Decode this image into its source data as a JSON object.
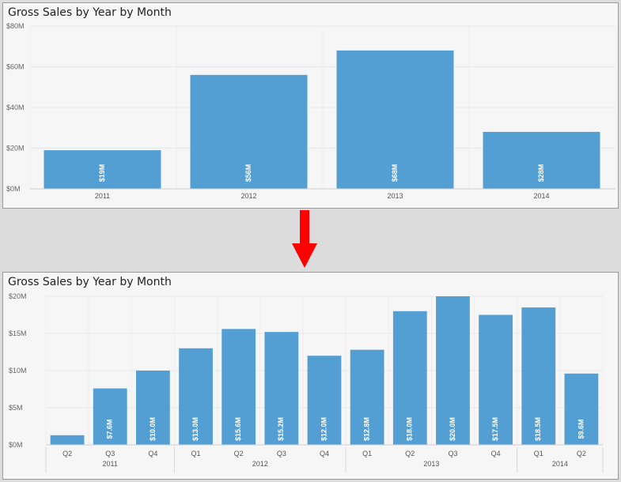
{
  "chart_data": [
    {
      "type": "bar",
      "title": "Gross Sales by Year by Month",
      "categories": [
        "2011",
        "2012",
        "2013",
        "2014"
      ],
      "values": [
        19,
        56,
        68,
        28
      ],
      "data_labels": [
        "$19M",
        "$56M",
        "$68M",
        "$28M"
      ],
      "y_ticks": [
        "$0M",
        "$20M",
        "$40M",
        "$60M",
        "$80M"
      ],
      "ylim": [
        0,
        80
      ],
      "xlabel": "",
      "ylabel": "",
      "grid": true,
      "color": "#539fd3"
    },
    {
      "type": "bar",
      "title": "Gross Sales by Year by Month",
      "categories": [
        "Q2",
        "Q3",
        "Q4",
        "Q1",
        "Q2",
        "Q3",
        "Q4",
        "Q1",
        "Q2",
        "Q3",
        "Q4",
        "Q1",
        "Q2"
      ],
      "years": [
        {
          "label": "2011",
          "count": 3
        },
        {
          "label": "2012",
          "count": 4
        },
        {
          "label": "2013",
          "count": 4
        },
        {
          "label": "2014",
          "count": 2
        }
      ],
      "values": [
        1.3,
        7.6,
        10.0,
        13.0,
        15.6,
        15.2,
        12.0,
        12.8,
        18.0,
        20.0,
        17.5,
        18.5,
        9.6
      ],
      "data_labels": [
        "",
        "$7.6M",
        "$10.0M",
        "$13.0M",
        "$15.6M",
        "$15.2M",
        "$12.0M",
        "$12.8M",
        "$18.0M",
        "$20.0M",
        "$17.5M",
        "$18.5M",
        "$9.6M"
      ],
      "y_ticks": [
        "$0M",
        "$5M",
        "$10M",
        "$15M",
        "$20M"
      ],
      "ylim": [
        0,
        20
      ],
      "xlabel": "",
      "ylabel": "",
      "grid": true,
      "color": "#539fd3"
    }
  ],
  "drilldown_arrow": {
    "color": "#ff0000",
    "icon": "down-arrow"
  }
}
